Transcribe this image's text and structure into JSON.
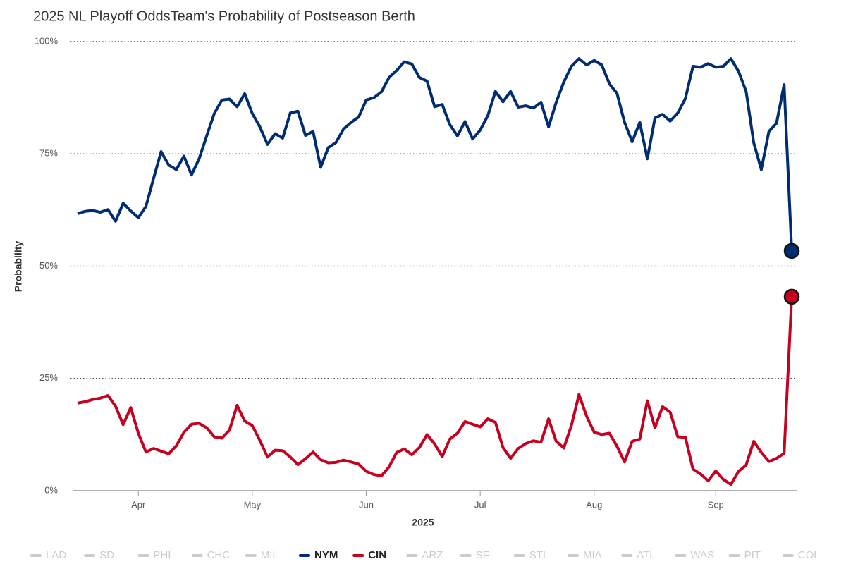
{
  "chart_data": {
    "type": "line",
    "title": "2025 NL Playoff OddsTeam's Probability of Postseason Berth",
    "x_label": "2025",
    "y_label": "Probability",
    "categories": [
      null,
      null,
      null,
      null,
      null,
      null,
      null,
      null,
      "Apr",
      null,
      null,
      null,
      null,
      null,
      null,
      null,
      null,
      null,
      null,
      null,
      null,
      null,
      null,
      "May",
      null,
      null,
      null,
      null,
      null,
      null,
      null,
      null,
      null,
      null,
      null,
      null,
      null,
      null,
      "Jun",
      null,
      null,
      null,
      null,
      null,
      null,
      null,
      null,
      null,
      null,
      null,
      null,
      null,
      null,
      "Jul",
      null,
      null,
      null,
      null,
      null,
      null,
      null,
      null,
      null,
      null,
      null,
      null,
      null,
      null,
      "Aug",
      null,
      null,
      null,
      null,
      null,
      null,
      null,
      null,
      null,
      null,
      null,
      null,
      null,
      null,
      null,
      "Sep",
      null,
      null,
      null,
      null,
      null,
      null,
      null,
      null,
      null,
      null
    ],
    "series": [
      {
        "name": "NYM",
        "color": "#002d72",
        "values": [
          61.7,
          62.2,
          62.4,
          62,
          62.6,
          60,
          64,
          62.3,
          60.8,
          63.3,
          69.5,
          75.5,
          72.5,
          71.5,
          74.5,
          70.3,
          73.9,
          79,
          84,
          87,
          87.2,
          85.5,
          88.4,
          84,
          81,
          77.1,
          79.5,
          78.5,
          84.1,
          84.5,
          79.1,
          80,
          72,
          76.4,
          77.5,
          80.5,
          82,
          83.2,
          87,
          87.5,
          88.8,
          92,
          93.6,
          95.5,
          95,
          92,
          91.2,
          85.5,
          86,
          81.5,
          79,
          82.2,
          78.3,
          80.3,
          83.5,
          88.9,
          86.6,
          88.9,
          85.4,
          85.7,
          85.2,
          86.5,
          81,
          86.5,
          91,
          94.5,
          96.2,
          94.8,
          95.8,
          94.8,
          90.6,
          88.5,
          82,
          77.7,
          82,
          73.9,
          83,
          83.8,
          82.3,
          84.1,
          87.3,
          94.5,
          94.3,
          95.1,
          94.3,
          94.5,
          96.2,
          93.4,
          88.9,
          77.5,
          71.5,
          80,
          81.8,
          90.4,
          53.4
        ]
      },
      {
        "name": "CIN",
        "color": "#c6011f",
        "values": [
          19.5,
          19.8,
          20.3,
          20.6,
          21.2,
          18.8,
          14.7,
          18.5,
          12.8,
          8.6,
          9.4,
          8.8,
          8.2,
          10,
          13,
          14.8,
          15,
          14,
          12,
          11.7,
          13.5,
          19,
          15.5,
          14.5,
          11.2,
          7.5,
          9,
          8.9,
          7.5,
          5.8,
          7.1,
          8.6,
          6.9,
          6.2,
          6.3,
          6.8,
          6.4,
          5.9,
          4.3,
          3.6,
          3.3,
          5.3,
          8.5,
          9.3,
          8,
          9.6,
          12.5,
          10.4,
          7.6,
          11.5,
          12.8,
          15.4,
          14.8,
          14.2,
          16,
          15.2,
          9.6,
          7.2,
          9.4,
          10.5,
          11.1,
          10.8,
          16,
          11,
          9.5,
          14.5,
          21.4,
          16.6,
          13,
          12.5,
          12.8,
          9.9,
          6.4,
          11,
          11.5,
          20,
          14,
          18.7,
          17.5,
          12,
          11.9,
          4.8,
          3.7,
          2.2,
          4.4,
          2.5,
          1.4,
          4.3,
          5.7,
          11,
          8.5,
          6.5,
          7.2,
          8.3,
          43.2
        ]
      }
    ],
    "ylim": [
      0,
      100
    ],
    "yticks": [
      {
        "value": 0,
        "label": "0%"
      },
      {
        "value": 25,
        "label": "25%"
      },
      {
        "value": 50,
        "label": "50%"
      },
      {
        "value": 75,
        "label": "75%"
      },
      {
        "value": 100,
        "label": "100%"
      }
    ],
    "grid": true,
    "legend": {
      "items": [
        "LAD",
        "SD",
        "PHI",
        "CHC",
        "MIL",
        "NYM",
        "CIN",
        "ARZ",
        "SF",
        "STL",
        "MIA",
        "ATL",
        "WAS",
        "PIT",
        "COL"
      ],
      "inactive_color": "#cccccc"
    }
  }
}
